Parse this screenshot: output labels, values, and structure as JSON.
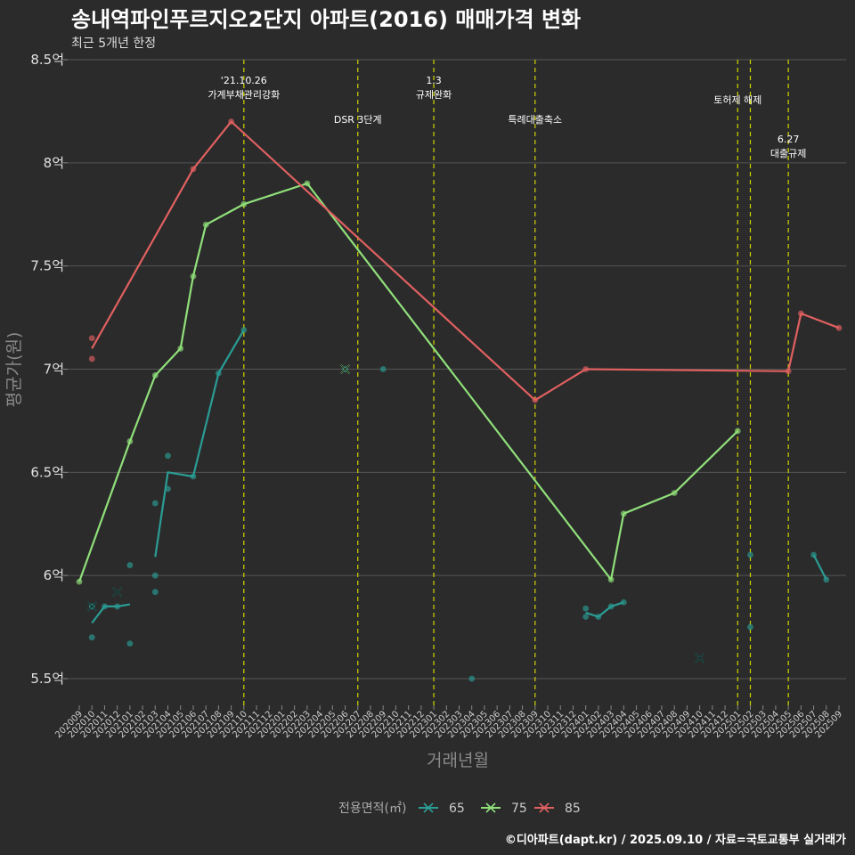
{
  "chart_data": {
    "type": "line",
    "title": "송내역파인푸르지오2단지 아파트(2016) 매매가격 변화",
    "subtitle": "최근 5개년 한정",
    "xlabel": "거래년월",
    "ylabel": "평균가(원)",
    "ylim": [
      5.35,
      8.5
    ],
    "y_ticks": [
      5.5,
      6,
      6.5,
      7,
      7.5,
      8,
      8.5
    ],
    "y_tick_labels": [
      "5.5억",
      "6억",
      "6.5억",
      "7억",
      "7.5억",
      "8억",
      "8.5억"
    ],
    "categories": [
      "202009",
      "202010",
      "202011",
      "202012",
      "202101",
      "202102",
      "202103",
      "202104",
      "202105",
      "202106",
      "202107",
      "202108",
      "202109",
      "202110",
      "202111",
      "202112",
      "202201",
      "202202",
      "202203",
      "202204",
      "202205",
      "202206",
      "202207",
      "202208",
      "202209",
      "202210",
      "202211",
      "202212",
      "202301",
      "202302",
      "202303",
      "202304",
      "202305",
      "202306",
      "202307",
      "202308",
      "202309",
      "202310",
      "202311",
      "202312",
      "202401",
      "202402",
      "202403",
      "202404",
      "202405",
      "202406",
      "202407",
      "202408",
      "202409",
      "202410",
      "202411",
      "202412",
      "202501",
      "202502",
      "202503",
      "202504",
      "202505",
      "202506",
      "202507",
      "202508",
      "202509"
    ],
    "series": [
      {
        "name": "65",
        "color": "#2a9d95",
        "line_segments": [
          [
            [
              1,
              5.77
            ],
            [
              2,
              5.85
            ],
            [
              3,
              5.85
            ],
            [
              4,
              5.86
            ]
          ],
          [
            [
              6,
              6.09
            ],
            [
              7,
              6.5
            ],
            [
              9,
              6.48
            ],
            [
              11,
              6.98
            ],
            [
              13,
              7.19
            ]
          ],
          [
            [
              40,
              5.82
            ],
            [
              41,
              5.8
            ],
            [
              42,
              5.85
            ],
            [
              43,
              5.87
            ]
          ],
          [
            [
              58,
              6.1
            ],
            [
              59,
              5.98
            ]
          ]
        ],
        "points": [
          [
            1,
            5.85
          ],
          [
            1,
            5.7
          ],
          [
            2,
            5.85
          ],
          [
            3,
            5.85
          ],
          [
            4,
            6.05
          ],
          [
            4,
            5.67
          ],
          [
            6,
            6.35
          ],
          [
            6,
            6.0
          ],
          [
            6,
            5.92
          ],
          [
            7,
            6.58
          ],
          [
            7,
            6.42
          ],
          [
            9,
            6.48
          ],
          [
            11,
            6.98
          ],
          [
            13,
            7.19
          ],
          [
            21,
            7.0
          ],
          [
            24,
            7.0
          ],
          [
            31,
            5.5
          ],
          [
            40,
            5.84
          ],
          [
            40,
            5.8
          ],
          [
            41,
            5.8
          ],
          [
            42,
            5.85
          ],
          [
            43,
            5.87
          ],
          [
            53,
            6.1
          ],
          [
            53,
            5.75
          ],
          [
            58,
            6.1
          ],
          [
            59,
            5.98
          ]
        ],
        "single_markers": [
          [
            1,
            5.85
          ],
          [
            3,
            5.92
          ],
          [
            21,
            7.0
          ],
          [
            49,
            5.6
          ]
        ]
      },
      {
        "name": "75",
        "color": "#90e07a",
        "line_segments": [
          [
            [
              0,
              5.97
            ],
            [
              4,
              6.65
            ],
            [
              6,
              6.97
            ],
            [
              8,
              7.1
            ],
            [
              9,
              7.45
            ],
            [
              10,
              7.7
            ],
            [
              13,
              7.8
            ],
            [
              18,
              7.9
            ],
            [
              42,
              5.98
            ],
            [
              43,
              6.3
            ],
            [
              47,
              6.4
            ],
            [
              52,
              6.7
            ]
          ]
        ],
        "points": [
          [
            0,
            5.97
          ],
          [
            4,
            6.65
          ],
          [
            6,
            6.97
          ],
          [
            8,
            7.1
          ],
          [
            9,
            7.45
          ],
          [
            10,
            7.7
          ],
          [
            13,
            7.8
          ],
          [
            18,
            7.9
          ],
          [
            42,
            5.98
          ],
          [
            43,
            6.3
          ],
          [
            47,
            6.4
          ],
          [
            52,
            6.7
          ]
        ],
        "single_markers": [
          [
            21,
            7.0
          ]
        ]
      },
      {
        "name": "85",
        "color": "#e06060",
        "line_segments": [
          [
            [
              1,
              7.1
            ],
            [
              9,
              7.97
            ],
            [
              12,
              8.2
            ],
            [
              36,
              6.85
            ],
            [
              40,
              7.0
            ],
            [
              56,
              6.99
            ],
            [
              57,
              7.27
            ],
            [
              60,
              7.2
            ]
          ]
        ],
        "points": [
          [
            1,
            7.15
          ],
          [
            1,
            7.05
          ],
          [
            9,
            7.97
          ],
          [
            12,
            8.2
          ],
          [
            36,
            6.85
          ],
          [
            40,
            7.0
          ],
          [
            56,
            6.99
          ],
          [
            57,
            7.27
          ],
          [
            60,
            7.2
          ]
        ],
        "single_markers": []
      }
    ],
    "events": [
      {
        "x": 13,
        "lines": [
          "'21.10.26",
          "가계부채관리강화"
        ],
        "level": 0
      },
      {
        "x": 22,
        "lines": [
          "DSR 3단계"
        ],
        "level": 1
      },
      {
        "x": 28,
        "lines": [
          "1.3",
          "규제완화"
        ],
        "level": 0
      },
      {
        "x": 36,
        "lines": [
          "특례대출축소"
        ],
        "level": 1
      },
      {
        "x": 52,
        "lines": [
          "토허제 해제"
        ],
        "level": 0.5
      },
      {
        "x": 53,
        "lines": [],
        "level": 0
      },
      {
        "x": 56,
        "lines": [
          "6.27",
          "대출규제"
        ],
        "level": 1.5
      }
    ],
    "legend": {
      "title": "전용면적(㎡)",
      "position": "bottom",
      "items": [
        "65",
        "75",
        "85"
      ]
    }
  },
  "caption": "©디아파트(dapt.kr) / 2025.09.10 / 자료=국토교통부 실거래가",
  "colors": {
    "background": "#2b2b2b",
    "grid": "#555555",
    "event_line": "#d4d400"
  }
}
